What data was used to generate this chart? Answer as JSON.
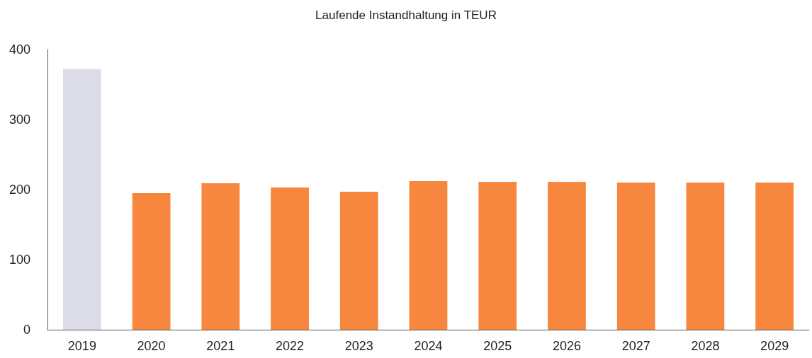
{
  "chart_data": {
    "type": "bar",
    "title": "Laufende Instandhaltung in TEUR",
    "categories": [
      "2019",
      "2020",
      "2021",
      "2022",
      "2023",
      "2024",
      "2025",
      "2026",
      "2027",
      "2028",
      "2029"
    ],
    "values": [
      372,
      195,
      209,
      203,
      197,
      212,
      211,
      211,
      210,
      210,
      210
    ],
    "colors": [
      "#dcdce8",
      "#f7873f",
      "#f7873f",
      "#f7873f",
      "#f7873f",
      "#f7873f",
      "#f7873f",
      "#f7873f",
      "#f7873f",
      "#f7873f",
      "#f7873f"
    ],
    "ylim": [
      0,
      400
    ],
    "yticks": [
      0,
      100,
      200,
      300,
      400
    ],
    "grid": false
  }
}
